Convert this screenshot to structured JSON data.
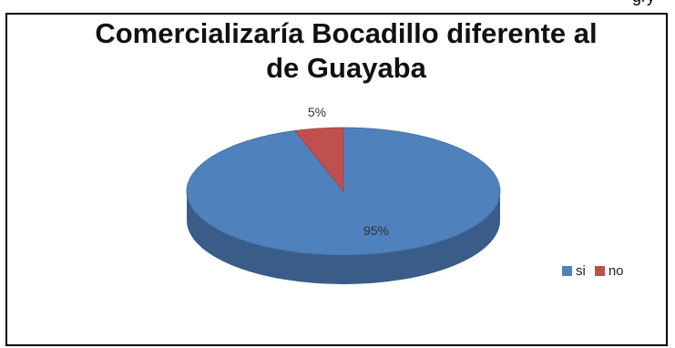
{
  "header_fragment": "gry",
  "chart_data": {
    "type": "pie",
    "title": "Comercializaría Bocadillo diferente al de Guayaba",
    "title_lines": [
      "Comercializaría Bocadillo diferente al",
      "de Guayaba"
    ],
    "categories": [
      "si",
      "no"
    ],
    "values": [
      95,
      5
    ],
    "data_labels": [
      "95%",
      "5%"
    ],
    "colors": [
      "#4f81bd",
      "#c0504d"
    ],
    "legend_position": "right"
  }
}
